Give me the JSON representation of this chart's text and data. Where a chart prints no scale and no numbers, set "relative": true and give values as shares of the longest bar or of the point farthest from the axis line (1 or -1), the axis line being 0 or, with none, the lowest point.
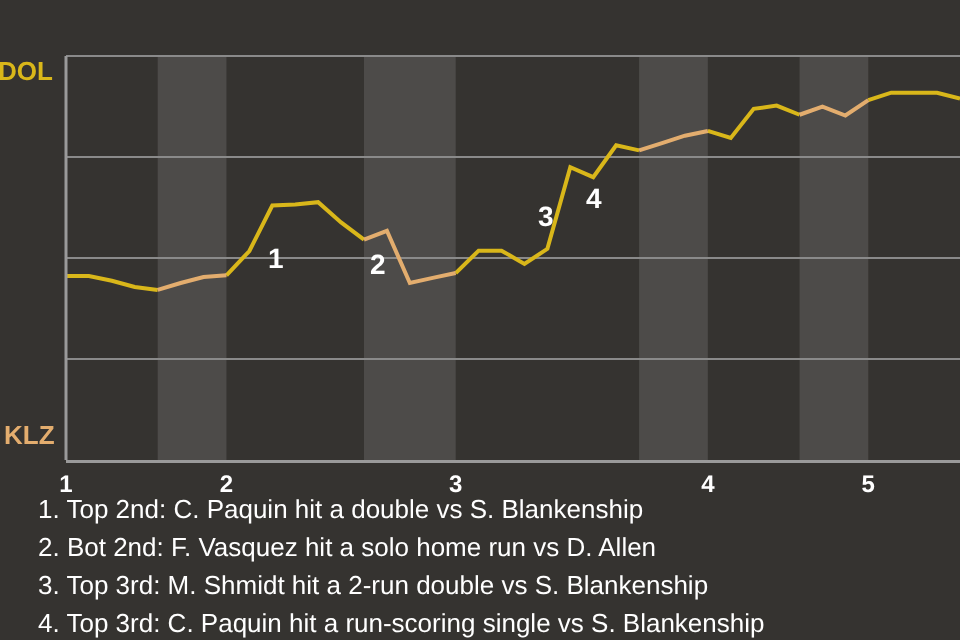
{
  "chart_data": {
    "type": "line",
    "categories": [
      "1",
      null,
      null,
      null,
      null,
      null,
      null,
      "2",
      null,
      null,
      null,
      null,
      null,
      null,
      null,
      null,
      null,
      "3",
      null,
      null,
      null,
      null,
      null,
      null,
      null,
      null,
      null,
      null,
      "4",
      null,
      null,
      null,
      null,
      null,
      null,
      "5",
      null,
      null,
      null,
      null
    ],
    "relative": true,
    "series": [
      {
        "color": "#d9b71a",
        "values": [
          0.501,
          0.501,
          0.488,
          0.471,
          0.463,
          null,
          null,
          0.503,
          0.569,
          0.693,
          0.696,
          0.702,
          0.647,
          0.6,
          null,
          null,
          null,
          0.509,
          0.57,
          0.57,
          0.534,
          0.575,
          0.797,
          0.77,
          0.857,
          0.843,
          null,
          null,
          0.896,
          0.877,
          0.956,
          0.965,
          0.94,
          null,
          null,
          0.98,
          1,
          1,
          1,
          0.984
        ]
      },
      {
        "color": "#e3ad6e",
        "values": [
          null,
          null,
          null,
          null,
          0.463,
          0.482,
          0.498,
          0.503,
          null,
          null,
          null,
          null,
          null,
          0.6,
          0.624,
          0.482,
          0.496,
          0.509,
          null,
          null,
          null,
          null,
          null,
          null,
          null,
          0.843,
          0.863,
          0.883,
          0.896,
          null,
          null,
          null,
          0.94,
          0.962,
          0.938,
          0.98,
          null,
          null,
          null,
          null
        ]
      }
    ],
    "grid": "y",
    "marker": "none",
    "line_style": "solid",
    "annotations": [
      "DOL",
      "KLZ",
      "1",
      "2",
      "3",
      "4",
      "1. Top 2nd: C. Paquin hit a double vs S. Blankenship",
      "2. Bot 2nd: F. Vasquez hit a solo home run vs D. Allen",
      "3. Top 3rd: M. Shmidt hit a 2-run double vs S. Blankenship",
      "4. Top 3rd: C. Paquin hit a run-scoring single vs S. Blankenship"
    ]
  }
}
